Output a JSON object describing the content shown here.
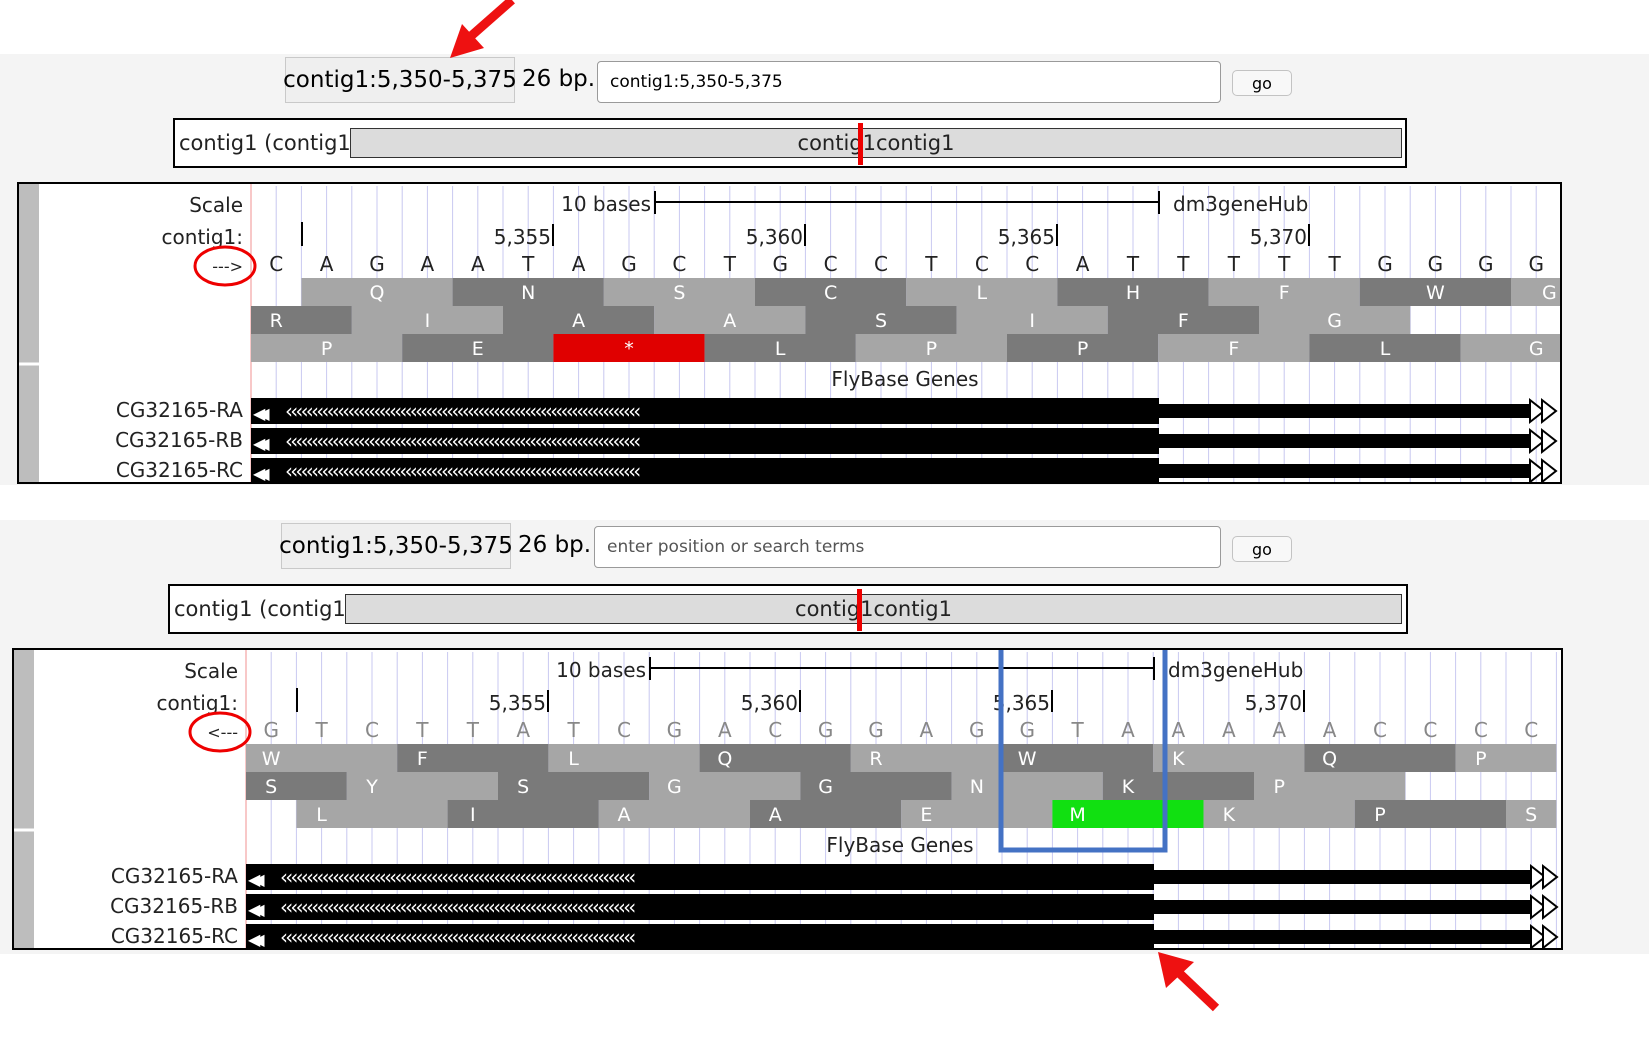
{
  "panels": [
    {
      "position": "contig1:5,350-5,375",
      "bp": "26 bp.",
      "search_value": "contig1:5,350-5,375",
      "search_placeholder": "",
      "go": "go",
      "chrom_label": "contig1 (contig1)",
      "ideogram_label": "contig1contig1",
      "scale_label": "Scale",
      "contig_label": "contig1:",
      "strand": "--->",
      "scale_bar_label": "10 bases",
      "hub_label": "dm3geneHub",
      "ticks": [
        "5,355",
        "5,360",
        "5,365",
        "5,370"
      ],
      "bases": [
        "C",
        "A",
        "G",
        "A",
        "A",
        "T",
        "A",
        "G",
        "C",
        "T",
        "G",
        "C",
        "C",
        "T",
        "C",
        "C",
        "A",
        "T",
        "T",
        "T",
        "T",
        "T",
        "G",
        "G",
        "G",
        "G"
      ],
      "frames": [
        [
          "Q",
          "N",
          "S",
          "C",
          "L",
          "H",
          "F",
          "W",
          "G"
        ],
        [
          "R",
          "I",
          "A",
          "A",
          "S",
          "I",
          "F",
          "G"
        ],
        [
          "P",
          "E",
          "*",
          "L",
          "P",
          "P",
          "F",
          "L",
          "G"
        ]
      ],
      "track_title": "FlyBase Genes",
      "genes": [
        "CG32165-RA",
        "CG32165-RB",
        "CG32165-RC"
      ]
    },
    {
      "position": "contig1:5,350-5,375",
      "bp": "26 bp.",
      "search_value": "",
      "search_placeholder": "enter position or search terms",
      "go": "go",
      "chrom_label": "contig1 (contig1)",
      "ideogram_label": "contig1contig1",
      "scale_label": "Scale",
      "contig_label": "contig1:",
      "strand": "<---",
      "scale_bar_label": "10 bases",
      "hub_label": "dm3geneHub",
      "ticks": [
        "5,355",
        "5,360",
        "5,365",
        "5,370"
      ],
      "bases": [
        "G",
        "T",
        "C",
        "T",
        "T",
        "A",
        "T",
        "C",
        "G",
        "A",
        "C",
        "G",
        "G",
        "A",
        "G",
        "G",
        "T",
        "A",
        "A",
        "A",
        "A",
        "A",
        "C",
        "C",
        "C",
        "C"
      ],
      "frames": [
        [
          "W",
          "F",
          "L",
          "Q",
          "R",
          "W",
          "K",
          "Q",
          "P"
        ],
        [
          "S",
          "Y",
          "S",
          "G",
          "G",
          "N",
          "K",
          "P"
        ],
        [
          "L",
          "I",
          "A",
          "A",
          "E",
          "M",
          "K",
          "P",
          "S"
        ]
      ],
      "track_title": "FlyBase Genes",
      "genes": [
        "CG32165-RA",
        "CG32165-RB",
        "CG32165-RC"
      ]
    }
  ],
  "colors": {
    "stop_codon": "#e00000",
    "start_codon": "#11e011",
    "highlight_box": "#4472c4",
    "annotation_arrow": "#ee1111",
    "frame_dark": "#7a7a7a",
    "frame_light": "#a6a6a6"
  }
}
